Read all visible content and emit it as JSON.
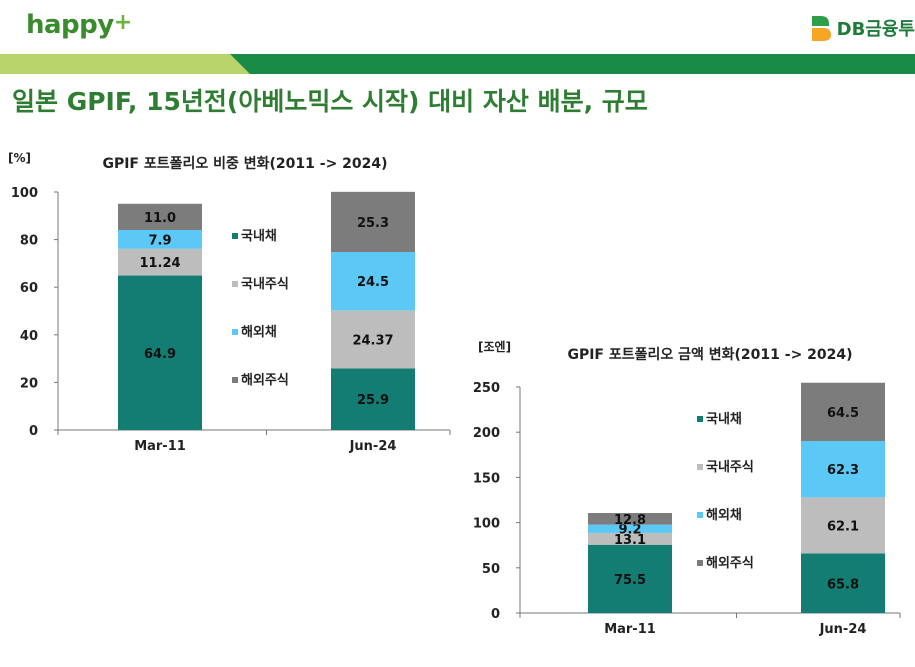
{
  "header": {
    "logo_left": "happy",
    "logo_left_plus": "+",
    "logo_right": "DB금융투",
    "title": "일본 GPIF, 15년전(아베노믹스 시작) 대비 자산 배분, 규모"
  },
  "colors": {
    "brand_green": "#2e7d32",
    "domestic_bonds": "#147d73",
    "domestic_stocks": "#bdbdbd",
    "foreign_bonds": "#5bc8f5",
    "foreign_stocks": "#7c7c7c"
  },
  "chart_data": [
    {
      "type": "bar",
      "stacked": true,
      "title": "GPIF 포트폴리오 비중 변화(2011 -> 2024)",
      "unit_label": "[%]",
      "categories": [
        "Mar-11",
        "Jun-24"
      ],
      "ylim": [
        0,
        100
      ],
      "yticks": [
        0,
        20,
        40,
        60,
        80,
        100
      ],
      "legend_position": "middle",
      "series": [
        {
          "name": "국내채",
          "color": "#147d73",
          "values": [
            64.9,
            25.9
          ],
          "labels": [
            "64.9",
            "25.9"
          ]
        },
        {
          "name": "국내주식",
          "color": "#bdbdbd",
          "values": [
            11.24,
            24.37
          ],
          "labels": [
            "11.24",
            "24.37"
          ]
        },
        {
          "name": "해외채",
          "color": "#5bc8f5",
          "values": [
            7.9,
            24.5
          ],
          "labels": [
            "7.9",
            "24.5"
          ]
        },
        {
          "name": "해외주식",
          "color": "#7c7c7c",
          "values": [
            11.0,
            25.3
          ],
          "labels": [
            "11.0",
            "25.3"
          ]
        }
      ]
    },
    {
      "type": "bar",
      "stacked": true,
      "title": "GPIF 포트폴리오 금액 변화(2011 -> 2024)",
      "unit_label": "[조엔]",
      "categories": [
        "Mar-11",
        "Jun-24"
      ],
      "ylim": [
        0,
        250
      ],
      "yticks": [
        0,
        50,
        100,
        150,
        200,
        250
      ],
      "legend_position": "middle",
      "series": [
        {
          "name": "국내채",
          "color": "#147d73",
          "values": [
            75.5,
            65.8
          ],
          "labels": [
            "75.5",
            "65.8"
          ]
        },
        {
          "name": "국내주식",
          "color": "#bdbdbd",
          "values": [
            13.1,
            62.1
          ],
          "labels": [
            "13.1",
            "62.1"
          ]
        },
        {
          "name": "해외채",
          "color": "#5bc8f5",
          "values": [
            9.2,
            62.3
          ],
          "labels": [
            "9.2",
            "62.3"
          ]
        },
        {
          "name": "해외주식",
          "color": "#7c7c7c",
          "values": [
            12.8,
            64.5
          ],
          "labels": [
            "12.8",
            "64.5"
          ]
        }
      ]
    }
  ]
}
